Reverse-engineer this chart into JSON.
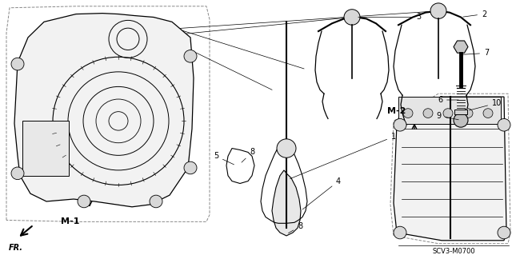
{
  "background_color": "#ffffff",
  "line_color": "#000000",
  "fig_width": 6.4,
  "fig_height": 3.19,
  "dpi": 100
}
